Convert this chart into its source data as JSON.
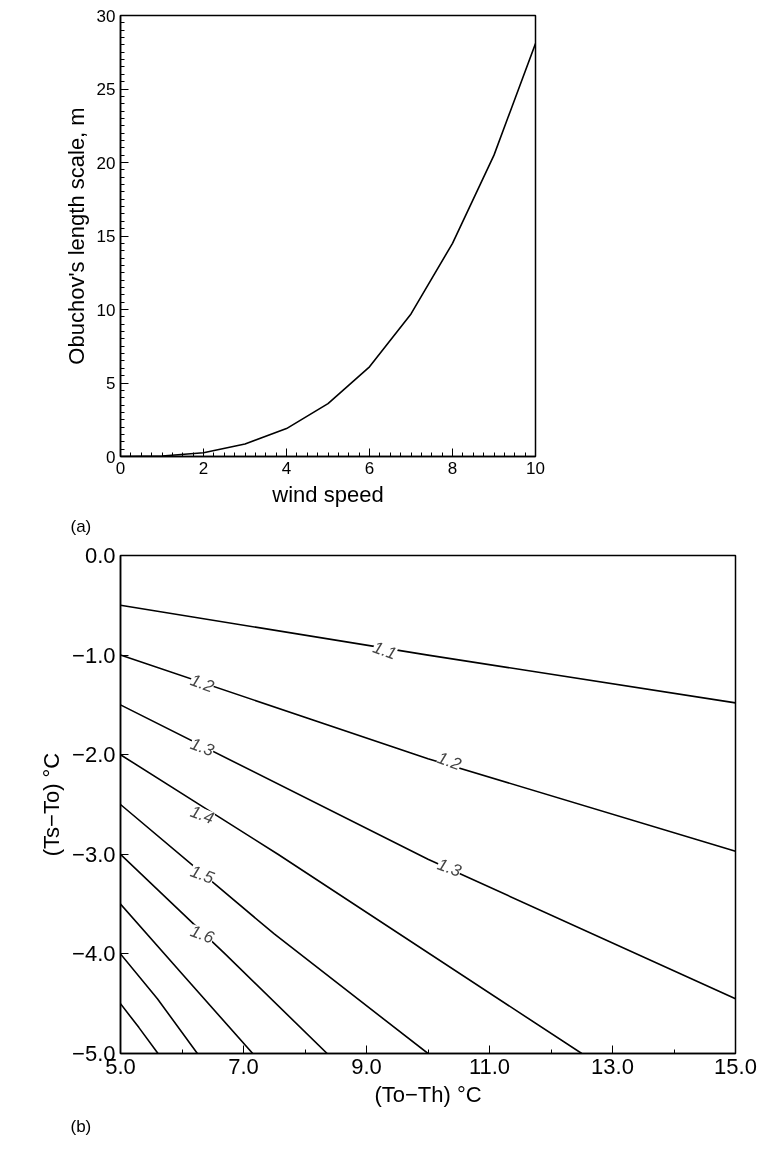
{
  "chart_data": [
    {
      "type": "line",
      "xlabel": "wind speed",
      "ylabel": "Obuchov's length scale, m",
      "x": [
        0,
        1,
        2,
        3,
        4,
        5,
        6,
        7,
        8,
        9,
        10
      ],
      "series": [
        {
          "color": "#000000",
          "values": [
            0,
            0.03,
            0.25,
            0.85,
            1.9,
            3.6,
            6.1,
            9.7,
            14.5,
            20.5,
            28.1
          ]
        }
      ],
      "xlim": [
        0,
        10
      ],
      "ylim": [
        0,
        30
      ],
      "xticks": [
        0,
        2,
        4,
        6,
        8,
        10
      ],
      "yticks": [
        0,
        5,
        10,
        15,
        20,
        25,
        30
      ],
      "grid": false,
      "annotations": [
        "(a)"
      ]
    },
    {
      "type": "line",
      "xlabel": "(To−Th) °C",
      "ylabel": "(Ts−To) °C",
      "series": [
        {
          "color": "#000000",
          "x": [
            5,
            10,
            15
          ],
          "values": [
            -0.5,
            -1.0,
            -1.48
          ]
        },
        {
          "color": "#000000",
          "x": [
            5,
            10,
            15
          ],
          "values": [
            -1.0,
            -2.04,
            -2.97
          ]
        },
        {
          "color": "#000000",
          "x": [
            5,
            10,
            15
          ],
          "values": [
            -1.5,
            -3.05,
            -4.45
          ]
        },
        {
          "color": "#000000",
          "x": [
            5,
            7.56,
            12.5
          ],
          "values": [
            -2.0,
            -3.0,
            -5.0
          ]
        },
        {
          "color": "#000000",
          "x": [
            5,
            7.5,
            10.0
          ],
          "values": [
            -2.5,
            -3.8,
            -5.0
          ]
        },
        {
          "color": "#000000",
          "x": [
            5,
            6.7,
            8.36
          ],
          "values": [
            -3.0,
            -4.0,
            -5.0
          ]
        },
        {
          "color": "#000000",
          "x": [
            5,
            6.0,
            7.15
          ],
          "values": [
            -3.5,
            -4.2,
            -5.0
          ]
        },
        {
          "color": "#000000",
          "x": [
            5,
            5.6,
            6.25
          ],
          "values": [
            -4.0,
            -4.45,
            -5.0
          ]
        },
        {
          "color": "#000000",
          "x": [
            5,
            5.3,
            5.61
          ],
          "values": [
            -4.5,
            -4.74,
            -5.0
          ]
        }
      ],
      "xlim": [
        5,
        15
      ],
      "ylim": [
        -5,
        0
      ],
      "xticks": [
        {
          "value": 5,
          "label": "5.0"
        },
        {
          "value": 7,
          "label": "7.0"
        },
        {
          "value": 9,
          "label": "9.0"
        },
        {
          "value": 11,
          "label": "11.0"
        },
        {
          "value": 13,
          "label": "13.0"
        },
        {
          "value": 15,
          "label": "15.0"
        }
      ],
      "yticks": [
        {
          "value": 0,
          "label": "0.0"
        },
        {
          "value": -1,
          "label": "−1.0"
        },
        {
          "value": -2,
          "label": "−2.0"
        },
        {
          "value": -3,
          "label": "−3.0"
        },
        {
          "value": -4,
          "label": "−4.0"
        },
        {
          "value": -5,
          "label": "−5.0"
        }
      ],
      "grid": false,
      "annotations": [
        {
          "text": "1.1",
          "x": 9.3,
          "y": -0.95
        },
        {
          "text": "1.2",
          "x": 6.33,
          "y": -1.28
        },
        {
          "text": "1.2",
          "x": 10.35,
          "y": -2.06
        },
        {
          "text": "1.3",
          "x": 6.33,
          "y": -1.92
        },
        {
          "text": "1.3",
          "x": 10.35,
          "y": -3.13
        },
        {
          "text": "1.4",
          "x": 6.33,
          "y": -2.6
        },
        {
          "text": "1.5",
          "x": 6.33,
          "y": -3.2
        },
        {
          "text": "1.6",
          "x": 6.33,
          "y": -3.8
        },
        "(b)"
      ]
    }
  ]
}
